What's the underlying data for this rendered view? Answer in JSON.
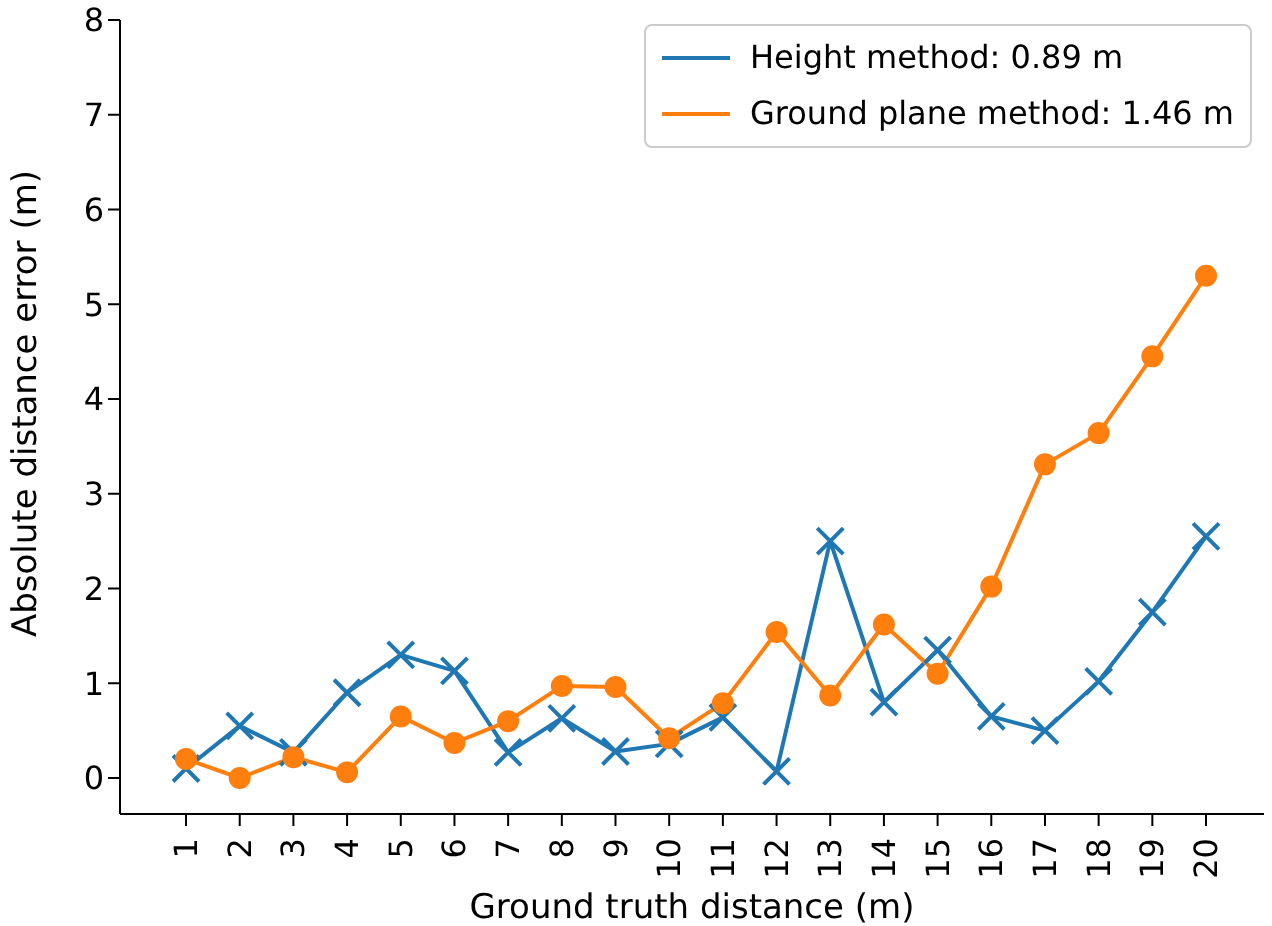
{
  "chart_data": {
    "type": "line",
    "xlabel": "Ground truth distance (m)",
    "ylabel": "Absolute distance error (m)",
    "categories": [
      "1",
      "2",
      "3",
      "4",
      "5",
      "6",
      "7",
      "8",
      "9",
      "10",
      "11",
      "12",
      "13",
      "14",
      "15",
      "16",
      "17",
      "18",
      "19",
      "20"
    ],
    "series": [
      {
        "name": "Height method: 0.89 m",
        "color": "#1f77b4",
        "marker": "cross",
        "values": [
          0.1,
          0.55,
          0.27,
          0.9,
          1.3,
          1.13,
          0.27,
          0.63,
          0.28,
          0.36,
          0.64,
          0.07,
          2.5,
          0.8,
          1.35,
          0.65,
          0.5,
          1.02,
          1.75,
          2.55
        ]
      },
      {
        "name": "Ground plane method: 1.46 m",
        "color": "#ff7f0e",
        "marker": "circle",
        "values": [
          0.2,
          0.0,
          0.22,
          0.06,
          0.65,
          0.37,
          0.6,
          0.97,
          0.96,
          0.42,
          0.79,
          1.54,
          0.87,
          1.62,
          1.1,
          2.02,
          3.31,
          3.64,
          4.45,
          5.3
        ]
      }
    ],
    "ylim": [
      -0.38,
      8
    ],
    "yticks": [
      0,
      1,
      2,
      3,
      4,
      5,
      6,
      7,
      8
    ],
    "grid": false,
    "legend": "top right"
  }
}
